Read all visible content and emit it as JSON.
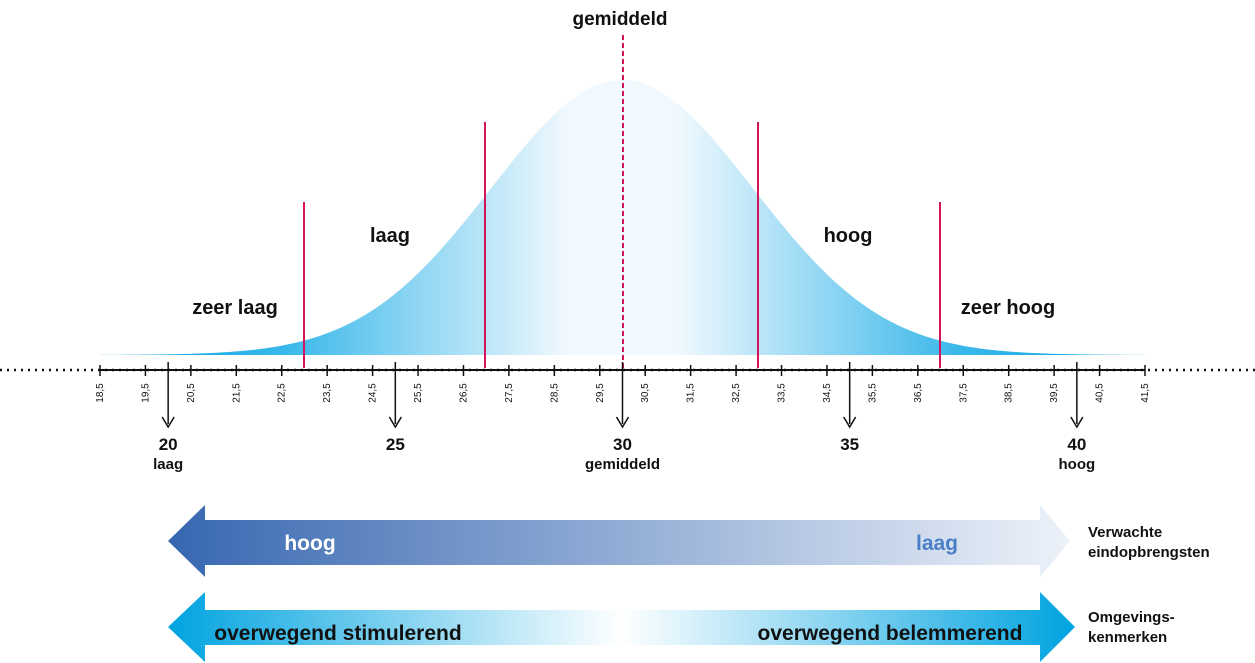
{
  "title": "gemiddeld",
  "regions": [
    "zeer laag",
    "laag",
    "hoog",
    "zeer hoog"
  ],
  "scale_ticks": [
    "18,5",
    "19,5",
    "20,5",
    "21,5",
    "22,5",
    "23,5",
    "24,5",
    "25,5",
    "26,5",
    "27,5",
    "28,5",
    "29,5",
    "30,5",
    "31,5",
    "32,5",
    "33,5",
    "34,5",
    "35,5",
    "36,5",
    "37,5",
    "38,5",
    "39,5",
    "40,5",
    "41,5"
  ],
  "markers": [
    {
      "value": "20",
      "label": "laag"
    },
    {
      "value": "25"
    },
    {
      "value": "30",
      "label": "gemiddeld"
    },
    {
      "value": "35"
    },
    {
      "value": "40",
      "label": "hoog"
    }
  ],
  "arrows": [
    {
      "left": "hoog",
      "right": "laag",
      "caption": [
        "Verwachte",
        "eindopbrengsten"
      ]
    },
    {
      "left": "overwegend stimulerend",
      "right": "overwegend belemmerend",
      "caption": [
        "Omgevings-",
        "kenmerken"
      ]
    }
  ]
}
